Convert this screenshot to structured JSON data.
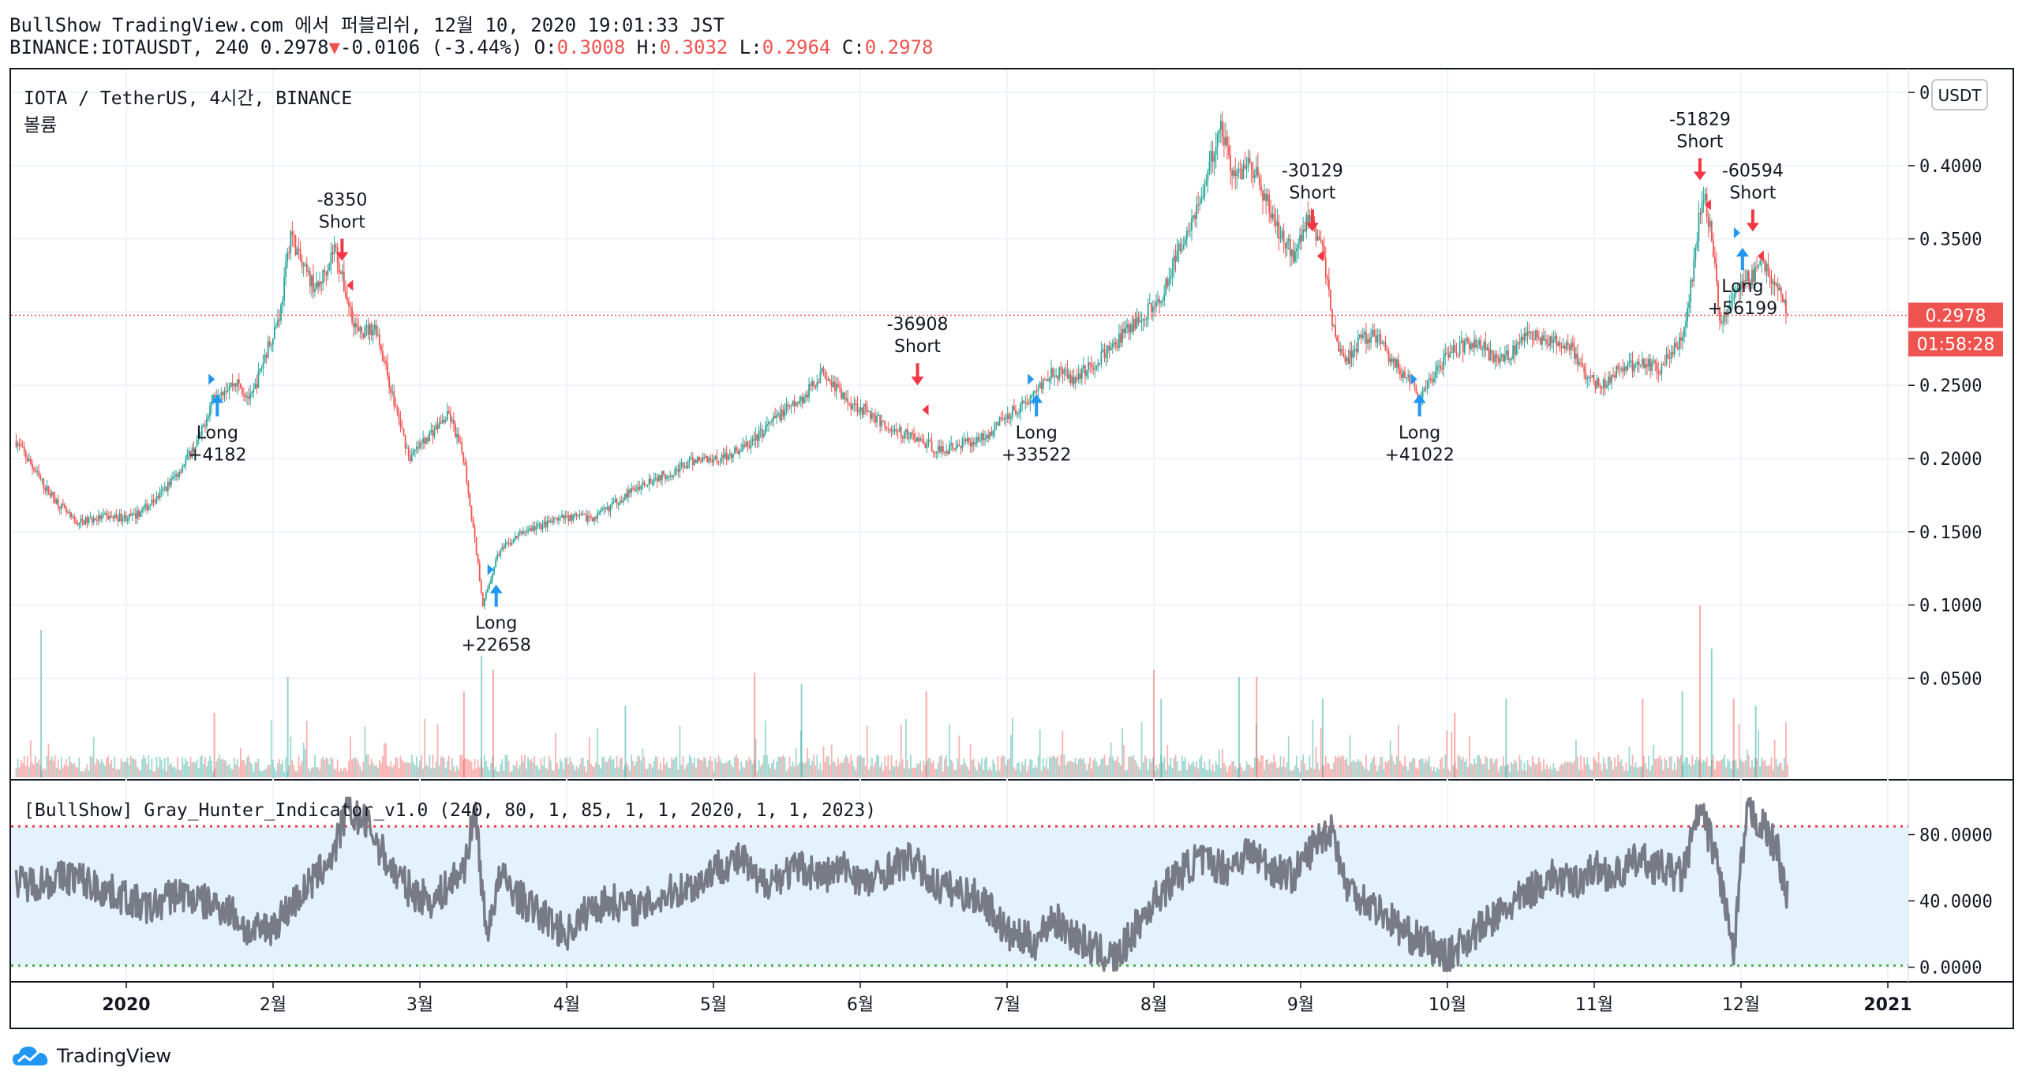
{
  "header": {
    "publish_line": "BullShow TradingView.com 에서 퍼블리쉬, 12월 10, 2020 19:01:33 JST",
    "symbol_line_prefix": "BINANCE:IOTAUSDT, 240 0.2978",
    "change_arrow": "▼",
    "change_text": "-0.0106 (-3.44%)",
    "o_label": "O:",
    "o_value": "0.3008",
    "h_label": "H:",
    "h_value": "0.3032",
    "l_label": "L:",
    "l_value": "0.2964",
    "c_label": "C:",
    "c_value": "0.2978"
  },
  "pane": {
    "title": "IOTA / TetherUS, 4시간, BINANCE",
    "volume_label": "볼륨",
    "currency_button": "USDT",
    "last_price_label": "0.2978",
    "countdown_label": "01:58:28",
    "indicator_title": "[BullShow] Gray_Hunter_Indicator_v1.0 (240, 80, 1, 85, 1, 1, 2020, 1, 1, 2023)"
  },
  "footer": {
    "logo_text": "TradingView"
  },
  "colors": {
    "up": "#26a69a",
    "down": "#ef5350",
    "buy": "#2196f3",
    "sell": "#f23645",
    "indicator_line": "#787b86",
    "band_fill": "#e3f2fd",
    "upper_line": "#f23645",
    "lower_line": "#4caf50"
  },
  "chart_data": [
    {
      "type": "candlestick",
      "ylim": [
        0.02,
        0.47
      ],
      "yticks": [
        0.45,
        0.4,
        0.35,
        0.3,
        0.25,
        0.2,
        0.15,
        0.1,
        0.05
      ],
      "ytick_labels": [
        "0.4500",
        "0.4000",
        "0.3500",
        "0.3000",
        "0.2500",
        "0.2000",
        "0.1500",
        "0.1000",
        "0.0500"
      ],
      "x_ticks": [
        "2020",
        "2월",
        "3월",
        "4월",
        "5월",
        "6월",
        "7월",
        "8월",
        "9월",
        "10월",
        "11월",
        "12월",
        "2021"
      ],
      "x_tick_months": [
        0,
        1,
        2,
        3,
        4,
        5,
        6,
        7,
        8,
        9,
        10,
        11,
        12
      ],
      "last_price": 0.2978,
      "price_path": [
        [
          -0.75,
          0.212
        ],
        [
          -0.55,
          0.18
        ],
        [
          -0.35,
          0.156
        ],
        [
          -0.15,
          0.16
        ],
        [
          0.05,
          0.16
        ],
        [
          0.2,
          0.172
        ],
        [
          0.35,
          0.19
        ],
        [
          0.5,
          0.214
        ],
        [
          0.6,
          0.245
        ],
        [
          0.75,
          0.252
        ],
        [
          0.85,
          0.24
        ],
        [
          0.95,
          0.272
        ],
        [
          1.05,
          0.3
        ],
        [
          1.12,
          0.355
        ],
        [
          1.2,
          0.33
        ],
        [
          1.3,
          0.315
        ],
        [
          1.42,
          0.345
        ],
        [
          1.5,
          0.31
        ],
        [
          1.58,
          0.285
        ],
        [
          1.7,
          0.29
        ],
        [
          1.82,
          0.24
        ],
        [
          1.93,
          0.2
        ],
        [
          2.05,
          0.215
        ],
        [
          2.2,
          0.23
        ],
        [
          2.3,
          0.2
        ],
        [
          2.38,
          0.14
        ],
        [
          2.43,
          0.1
        ],
        [
          2.53,
          0.135
        ],
        [
          2.7,
          0.15
        ],
        [
          2.85,
          0.155
        ],
        [
          3.0,
          0.16
        ],
        [
          3.2,
          0.16
        ],
        [
          3.4,
          0.175
        ],
        [
          3.55,
          0.185
        ],
        [
          3.7,
          0.19
        ],
        [
          3.9,
          0.2
        ],
        [
          4.05,
          0.2
        ],
        [
          4.25,
          0.21
        ],
        [
          4.45,
          0.23
        ],
        [
          4.6,
          0.24
        ],
        [
          4.75,
          0.26
        ],
        [
          4.9,
          0.24
        ],
        [
          5.05,
          0.232
        ],
        [
          5.2,
          0.22
        ],
        [
          5.35,
          0.215
        ],
        [
          5.55,
          0.205
        ],
        [
          5.7,
          0.21
        ],
        [
          5.85,
          0.215
        ],
        [
          6.0,
          0.23
        ],
        [
          6.15,
          0.24
        ],
        [
          6.3,
          0.26
        ],
        [
          6.45,
          0.255
        ],
        [
          6.6,
          0.265
        ],
        [
          6.75,
          0.28
        ],
        [
          6.9,
          0.295
        ],
        [
          7.05,
          0.31
        ],
        [
          7.2,
          0.35
        ],
        [
          7.35,
          0.385
        ],
        [
          7.45,
          0.43
        ],
        [
          7.55,
          0.39
        ],
        [
          7.65,
          0.405
        ],
        [
          7.75,
          0.38
        ],
        [
          7.85,
          0.355
        ],
        [
          7.95,
          0.34
        ],
        [
          8.05,
          0.365
        ],
        [
          8.15,
          0.345
        ],
        [
          8.22,
          0.29
        ],
        [
          8.3,
          0.265
        ],
        [
          8.4,
          0.28
        ],
        [
          8.5,
          0.285
        ],
        [
          8.6,
          0.27
        ],
        [
          8.72,
          0.255
        ],
        [
          8.82,
          0.24
        ],
        [
          8.92,
          0.26
        ],
        [
          9.05,
          0.275
        ],
        [
          9.2,
          0.28
        ],
        [
          9.3,
          0.27
        ],
        [
          9.42,
          0.27
        ],
        [
          9.55,
          0.285
        ],
        [
          9.7,
          0.28
        ],
        [
          9.85,
          0.275
        ],
        [
          9.95,
          0.255
        ],
        [
          10.05,
          0.25
        ],
        [
          10.15,
          0.26
        ],
        [
          10.3,
          0.265
        ],
        [
          10.45,
          0.262
        ],
        [
          10.55,
          0.275
        ],
        [
          10.62,
          0.29
        ],
        [
          10.68,
          0.335
        ],
        [
          10.74,
          0.385
        ],
        [
          10.8,
          0.35
        ],
        [
          10.86,
          0.29
        ],
        [
          10.93,
          0.31
        ],
        [
          11.0,
          0.32
        ],
        [
          11.08,
          0.325
        ],
        [
          11.15,
          0.335
        ],
        [
          11.22,
          0.322
        ],
        [
          11.3,
          0.305
        ],
        [
          11.32,
          0.2978
        ]
      ],
      "volume_spikes": [
        [
          -0.58,
          0.103
        ],
        [
          0.6,
          0.045
        ],
        [
          1.1,
          0.07
        ],
        [
          2.3,
          0.06
        ],
        [
          2.42,
          0.085
        ],
        [
          2.5,
          0.075
        ],
        [
          3.4,
          0.05
        ],
        [
          4.28,
          0.073
        ],
        [
          4.6,
          0.065
        ],
        [
          5.45,
          0.06
        ],
        [
          7.05,
          0.055
        ],
        [
          7.0,
          0.075
        ],
        [
          7.58,
          0.07
        ],
        [
          7.7,
          0.07
        ],
        [
          8.15,
          0.055
        ],
        [
          9.05,
          0.045
        ],
        [
          9.4,
          0.055
        ],
        [
          10.33,
          0.055
        ],
        [
          10.6,
          0.06
        ],
        [
          10.72,
          0.12
        ],
        [
          10.8,
          0.09
        ],
        [
          10.95,
          0.055
        ],
        [
          11.1,
          0.05
        ]
      ],
      "signals": [
        {
          "side": "long",
          "month": 0.62,
          "price": 0.245,
          "lines": [
            "Long",
            "+4182"
          ]
        },
        {
          "side": "short",
          "month": 1.47,
          "price": 0.335,
          "lines": [
            "-8350",
            "Short"
          ]
        },
        {
          "side": "long",
          "month": 2.52,
          "price": 0.115,
          "lines": [
            "Long",
            "+22658"
          ]
        },
        {
          "side": "short",
          "month": 5.39,
          "price": 0.25,
          "lines": [
            "-36908",
            "Short"
          ]
        },
        {
          "side": "long",
          "month": 6.2,
          "price": 0.245,
          "lines": [
            "Long",
            "+33522"
          ]
        },
        {
          "side": "short",
          "month": 8.08,
          "price": 0.355,
          "lines": [
            "-30129",
            "Short"
          ]
        },
        {
          "side": "long",
          "month": 8.81,
          "price": 0.245,
          "lines": [
            "Long",
            "+41022"
          ]
        },
        {
          "side": "short",
          "month": 10.72,
          "price": 0.39,
          "lines": [
            "-51829",
            "Short"
          ]
        },
        {
          "side": "long",
          "month": 11.01,
          "price": 0.345,
          "lines": [
            "Long",
            "+56199"
          ]
        },
        {
          "side": "short",
          "month": 11.08,
          "price": 0.355,
          "lines": [
            "-60594",
            "Short"
          ]
        }
      ]
    },
    {
      "type": "line",
      "ylim": [
        -5,
        105
      ],
      "yticks": [
        80,
        40,
        0
      ],
      "ytick_labels": [
        "80.0000",
        "40.0000",
        "0.0000"
      ],
      "upper_level": 85,
      "lower_level": 1,
      "series": [
        {
          "values_path": [
            [
              -0.75,
              50
            ],
            [
              -0.55,
              52
            ],
            [
              -0.35,
              55
            ],
            [
              -0.2,
              48
            ],
            [
              0.0,
              42
            ],
            [
              0.15,
              35
            ],
            [
              0.35,
              45
            ],
            [
              0.5,
              40
            ],
            [
              0.7,
              35
            ],
            [
              0.85,
              20
            ],
            [
              1.0,
              25
            ],
            [
              1.15,
              40
            ],
            [
              1.3,
              55
            ],
            [
              1.42,
              70
            ],
            [
              1.5,
              95
            ],
            [
              1.65,
              85
            ],
            [
              1.8,
              60
            ],
            [
              1.95,
              45
            ],
            [
              2.1,
              40
            ],
            [
              2.3,
              60
            ],
            [
              2.38,
              95
            ],
            [
              2.45,
              20
            ],
            [
              2.55,
              55
            ],
            [
              2.7,
              40
            ],
            [
              2.85,
              30
            ],
            [
              3.0,
              20
            ],
            [
              3.15,
              35
            ],
            [
              3.3,
              40
            ],
            [
              3.5,
              35
            ],
            [
              3.7,
              45
            ],
            [
              3.9,
              50
            ],
            [
              4.0,
              60
            ],
            [
              4.2,
              65
            ],
            [
              4.3,
              50
            ],
            [
              4.45,
              55
            ],
            [
              4.6,
              60
            ],
            [
              4.75,
              55
            ],
            [
              4.9,
              60
            ],
            [
              5.05,
              50
            ],
            [
              5.2,
              60
            ],
            [
              5.35,
              65
            ],
            [
              5.5,
              50
            ],
            [
              5.7,
              45
            ],
            [
              5.85,
              40
            ],
            [
              6.0,
              20
            ],
            [
              6.2,
              15
            ],
            [
              6.3,
              30
            ],
            [
              6.45,
              20
            ],
            [
              6.6,
              10
            ],
            [
              6.75,
              5
            ],
            [
              6.85,
              20
            ],
            [
              7.0,
              40
            ],
            [
              7.15,
              55
            ],
            [
              7.3,
              65
            ],
            [
              7.5,
              60
            ],
            [
              7.65,
              70
            ],
            [
              7.8,
              60
            ],
            [
              7.95,
              55
            ],
            [
              8.1,
              75
            ],
            [
              8.22,
              85
            ],
            [
              8.3,
              50
            ],
            [
              8.45,
              40
            ],
            [
              8.6,
              30
            ],
            [
              8.72,
              20
            ],
            [
              8.85,
              15
            ],
            [
              9.0,
              5
            ],
            [
              9.1,
              15
            ],
            [
              9.25,
              25
            ],
            [
              9.4,
              35
            ],
            [
              9.55,
              45
            ],
            [
              9.7,
              55
            ],
            [
              9.85,
              50
            ],
            [
              10.0,
              60
            ],
            [
              10.15,
              55
            ],
            [
              10.3,
              65
            ],
            [
              10.45,
              60
            ],
            [
              10.6,
              55
            ],
            [
              10.72,
              95
            ],
            [
              10.82,
              70
            ],
            [
              10.9,
              35
            ],
            [
              10.95,
              5
            ],
            [
              11.0,
              60
            ],
            [
              11.05,
              95
            ],
            [
              11.15,
              85
            ],
            [
              11.25,
              70
            ],
            [
              11.32,
              40
            ]
          ]
        }
      ]
    }
  ]
}
